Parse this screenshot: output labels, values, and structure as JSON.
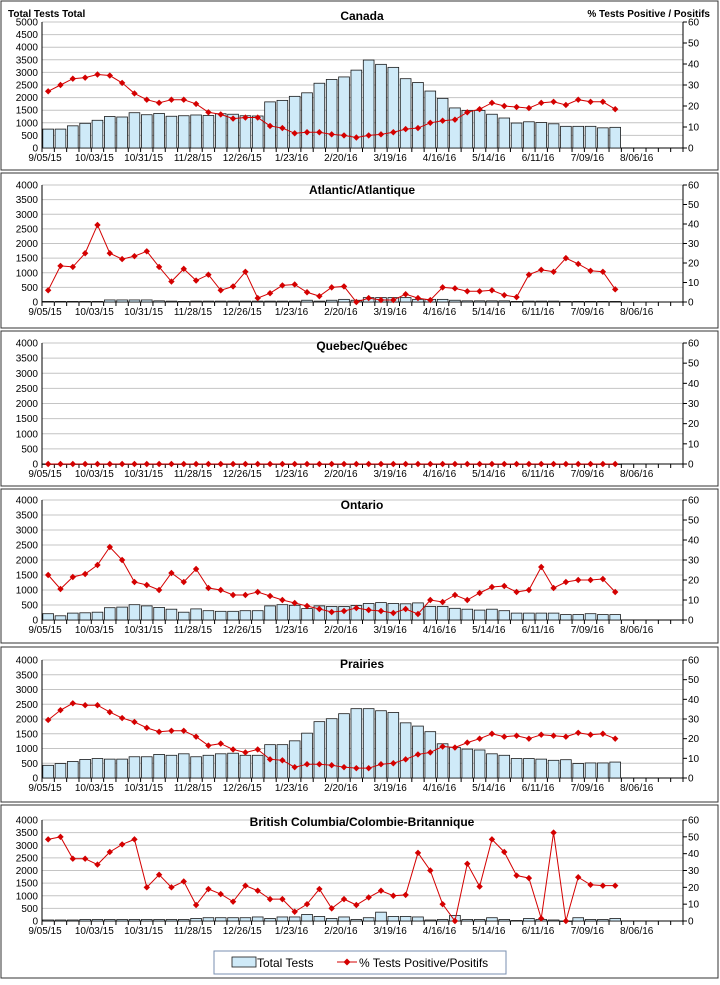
{
  "chart_data": [
    {
      "type": "bar+line",
      "title": "Canada",
      "ylabel_left": "Total Tests Total",
      "ylabel_right": "% Tests Positive / Positifs",
      "ylim_left": [
        0,
        5000
      ],
      "ystep_left": 500,
      "ylim_right": [
        0,
        60
      ],
      "ystep_right": 10,
      "total_tests": [
        750,
        750,
        880,
        980,
        1100,
        1250,
        1230,
        1400,
        1320,
        1370,
        1260,
        1280,
        1310,
        1290,
        1360,
        1340,
        1280,
        1270,
        1830,
        1890,
        2050,
        2190,
        2570,
        2720,
        2820,
        3090,
        3490,
        3320,
        3200,
        2750,
        2600,
        2260,
        1970,
        1590,
        1490,
        1490,
        1340,
        1190,
        990,
        1040,
        1010,
        960,
        860,
        860,
        860,
        800,
        820
      ],
      "pct_positive": [
        27,
        30,
        33,
        33.5,
        35,
        34.5,
        31,
        26,
        23,
        21.5,
        23,
        23,
        21,
        17,
        16,
        14,
        14.5,
        14.5,
        10.5,
        9.5,
        7,
        7.5,
        7.5,
        6.5,
        6,
        5,
        6,
        6.5,
        7.5,
        9,
        9.5,
        12,
        13,
        13.5,
        17,
        18.5,
        21.5,
        20,
        19.5,
        19,
        21.5,
        22,
        20.5,
        23,
        22,
        22,
        18.5
      ]
    },
    {
      "type": "bar+line",
      "title": "Atlantic/Atlantique",
      "ylim_left": [
        0,
        4000
      ],
      "ystep_left": 500,
      "ylim_right": [
        0,
        60
      ],
      "ystep_right": 10,
      "total_tests": [
        20,
        20,
        20,
        20,
        20,
        70,
        70,
        70,
        70,
        40,
        30,
        20,
        30,
        30,
        30,
        30,
        30,
        30,
        30,
        30,
        30,
        60,
        30,
        60,
        90,
        60,
        150,
        150,
        150,
        150,
        90,
        90,
        90,
        60,
        40,
        40,
        40,
        40,
        20,
        30,
        30,
        30,
        20,
        20,
        20,
        20,
        20
      ],
      "pct_positive": [
        6,
        18.5,
        18,
        25,
        39.5,
        25,
        22,
        23.5,
        26,
        18,
        10.5,
        17,
        11,
        14,
        6,
        8,
        15.5,
        2,
        4.5,
        8.5,
        9,
        5,
        3,
        7.5,
        8,
        0,
        2,
        1,
        1,
        4,
        2,
        1,
        7.5,
        7,
        5.5,
        5.5,
        6,
        3.5,
        2.5,
        14,
        16.5,
        15.5,
        22.5,
        19.5,
        16,
        15.5,
        6.5
      ]
    },
    {
      "type": "bar+line",
      "title": "Quebec/Québec",
      "ylim_left": [
        0,
        4000
      ],
      "ystep_left": 500,
      "ylim_right": [
        0,
        60
      ],
      "ystep_right": 10,
      "total_tests": [
        0,
        0,
        0,
        0,
        0,
        0,
        0,
        0,
        0,
        0,
        0,
        0,
        0,
        0,
        0,
        0,
        0,
        0,
        0,
        0,
        0,
        0,
        0,
        0,
        0,
        0,
        0,
        0,
        0,
        0,
        0,
        0,
        0,
        0,
        0,
        0,
        0,
        0,
        0,
        0,
        0,
        0,
        0,
        0,
        0,
        0,
        0
      ],
      "pct_positive": [
        0,
        0,
        0,
        0,
        0,
        0,
        0,
        0,
        0,
        0,
        0,
        0,
        0,
        0,
        0,
        0,
        0,
        0,
        0,
        0,
        0,
        0,
        0,
        0,
        0,
        0,
        0,
        0,
        0,
        0,
        0,
        0,
        0,
        0,
        0,
        0,
        0,
        0,
        0,
        0,
        0,
        0,
        0,
        0,
        0,
        0,
        0
      ]
    },
    {
      "type": "bar+line",
      "title": "Ontario",
      "ylim_left": [
        0,
        4000
      ],
      "ystep_left": 500,
      "ylim_right": [
        0,
        60
      ],
      "ystep_right": 10,
      "total_tests": [
        210,
        140,
        230,
        240,
        260,
        410,
        430,
        510,
        470,
        420,
        360,
        260,
        370,
        310,
        290,
        290,
        310,
        310,
        470,
        510,
        490,
        380,
        470,
        450,
        450,
        480,
        550,
        580,
        550,
        540,
        570,
        450,
        450,
        390,
        360,
        330,
        360,
        310,
        230,
        230,
        230,
        230,
        180,
        180,
        210,
        180,
        180
      ],
      "pct_positive": [
        22.5,
        15.5,
        21.5,
        23,
        27.5,
        36.5,
        30,
        19,
        17.5,
        15,
        23.5,
        19,
        25.5,
        16,
        15,
        12.5,
        12.5,
        14,
        12,
        10,
        8.5,
        7,
        5.5,
        4,
        4.5,
        6,
        5,
        4.5,
        3.5,
        5.5,
        3,
        10,
        9,
        12.5,
        10,
        13.5,
        16.5,
        17,
        14,
        15,
        26.5,
        16,
        19,
        20,
        20,
        20.5,
        14
      ]
    },
    {
      "type": "bar+line",
      "title": "Prairies",
      "ylim_left": [
        0,
        4000
      ],
      "ystep_left": 500,
      "ylim_right": [
        0,
        60
      ],
      "ystep_right": 10,
      "total_tests": [
        430,
        490,
        560,
        630,
        660,
        640,
        640,
        720,
        720,
        800,
        770,
        820,
        720,
        770,
        820,
        840,
        770,
        770,
        1130,
        1130,
        1260,
        1520,
        1910,
        2010,
        2180,
        2350,
        2350,
        2280,
        2220,
        1870,
        1760,
        1570,
        1160,
        1040,
        980,
        950,
        820,
        770,
        660,
        660,
        640,
        600,
        620,
        490,
        510,
        510,
        540
      ],
      "pct_positive": [
        29.5,
        34.5,
        38,
        37,
        37,
        33.5,
        30.5,
        28.5,
        25.5,
        23.5,
        24,
        24,
        21,
        16.5,
        17.5,
        14.5,
        13,
        14.5,
        9.5,
        9,
        5.5,
        7,
        7,
        6.5,
        5.5,
        5,
        5,
        7,
        7.5,
        9.5,
        12,
        13,
        16,
        15.5,
        18,
        20,
        22.5,
        21,
        21.5,
        20,
        22,
        21.5,
        21,
        23,
        22,
        22.5,
        20
      ]
    },
    {
      "type": "bar+line",
      "title": "British Columbia/Colombie-Britannique",
      "ylim_left": [
        0,
        4000
      ],
      "ystep_left": 500,
      "ylim_right": [
        0,
        60
      ],
      "ystep_right": 10,
      "total_tests": [
        40,
        40,
        40,
        60,
        60,
        60,
        60,
        60,
        60,
        60,
        60,
        60,
        100,
        130,
        130,
        130,
        130,
        160,
        100,
        160,
        160,
        260,
        180,
        100,
        160,
        60,
        130,
        350,
        180,
        180,
        160,
        40,
        60,
        220,
        60,
        60,
        130,
        60,
        20,
        100,
        60,
        40,
        0,
        130,
        60,
        60,
        100
      ],
      "pct_positive": [
        48.5,
        50,
        37,
        37,
        33.5,
        41,
        45.5,
        48.5,
        20,
        27.5,
        20,
        23.5,
        9.5,
        19,
        16,
        11.5,
        21,
        18,
        13,
        13,
        5.5,
        10,
        19,
        7.5,
        13,
        9.5,
        14,
        18,
        15,
        15.5,
        40.5,
        30,
        10,
        0,
        34,
        20.5,
        48.5,
        41,
        27,
        25.5,
        1.5,
        52.5,
        0,
        26,
        21.5,
        21,
        21
      ]
    }
  ],
  "x_axis": {
    "n_weeks": 52,
    "tick_every": 4,
    "tick_labels": [
      "9/05/15",
      "10/03/15",
      "10/31/15",
      "11/28/15",
      "12/26/15",
      "1/23/16",
      "2/20/16",
      "3/19/16",
      "4/16/16",
      "5/14/16",
      "6/11/16",
      "7/09/16",
      "8/06/16"
    ]
  },
  "legend": {
    "bars_label": "Total Tests",
    "line_label": "% Tests Positive/Positifs"
  },
  "colors": {
    "bar_fill": "#cfeaf8",
    "bar_stroke": "#1a1a1a",
    "line": "#d40000",
    "grid": "#c4c4c4"
  }
}
